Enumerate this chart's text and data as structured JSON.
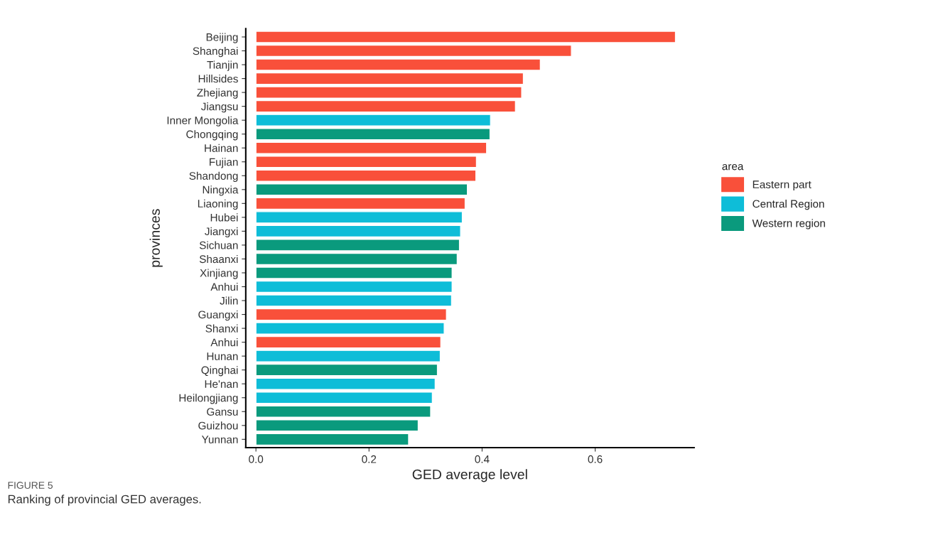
{
  "chart_data": {
    "type": "bar",
    "orientation": "horizontal",
    "xlabel": "GED average level",
    "ylabel": "provinces",
    "legend_title": "area",
    "categories": [
      "Beijing",
      "Shanghai",
      "Tianjin",
      "Hillsides",
      "Zhejiang",
      "Jiangsu",
      "Inner Mongolia",
      "Chongqing",
      "Hainan",
      "Fujian",
      "Shandong",
      "Ningxia",
      "Liaoning",
      "Hubei",
      "Jiangxi",
      "Sichuan",
      "Shaanxi",
      "Xinjiang",
      "Anhui",
      "Jilin",
      "Guangxi",
      "Shanxi",
      "Anhui",
      "Hunan",
      "Qinghai",
      "He'nan",
      "Heilongjiang",
      "Gansu",
      "Guizhou",
      "Yunnan"
    ],
    "series": [
      {
        "name": "Eastern part",
        "color": "#f9503a",
        "values": [
          0.742,
          0.558,
          0.503,
          0.473,
          0.47,
          0.459,
          null,
          null,
          0.408,
          0.39,
          0.389,
          null,
          0.37,
          null,
          null,
          null,
          null,
          null,
          null,
          null,
          0.337,
          null,
          0.327,
          null,
          null,
          null,
          null,
          null,
          null,
          null
        ]
      },
      {
        "name": "Central Region",
        "color": "#0ebdd8",
        "values": [
          null,
          null,
          null,
          null,
          null,
          null,
          0.415,
          null,
          null,
          null,
          null,
          null,
          null,
          0.365,
          0.362,
          null,
          null,
          null,
          0.347,
          0.346,
          null,
          0.333,
          null,
          0.326,
          null,
          0.317,
          0.312,
          null,
          null,
          null
        ]
      },
      {
        "name": "Western region",
        "color": "#0a9a7d",
        "values": [
          null,
          null,
          null,
          null,
          null,
          null,
          null,
          0.414,
          null,
          null,
          null,
          0.374,
          null,
          null,
          null,
          0.36,
          0.356,
          0.347,
          null,
          null,
          null,
          null,
          null,
          null,
          0.321,
          null,
          null,
          0.309,
          0.287,
          0.27
        ]
      }
    ],
    "xlim": [
      -0.018,
      0.775
    ],
    "xticks": [
      {
        "value": 0,
        "label": "0.0"
      },
      0.2,
      0.4,
      0.6
    ],
    "grid": false,
    "legend": "right",
    "annotations": [
      "FIGURE 5",
      "Ranking of provincial GED averages."
    ]
  }
}
